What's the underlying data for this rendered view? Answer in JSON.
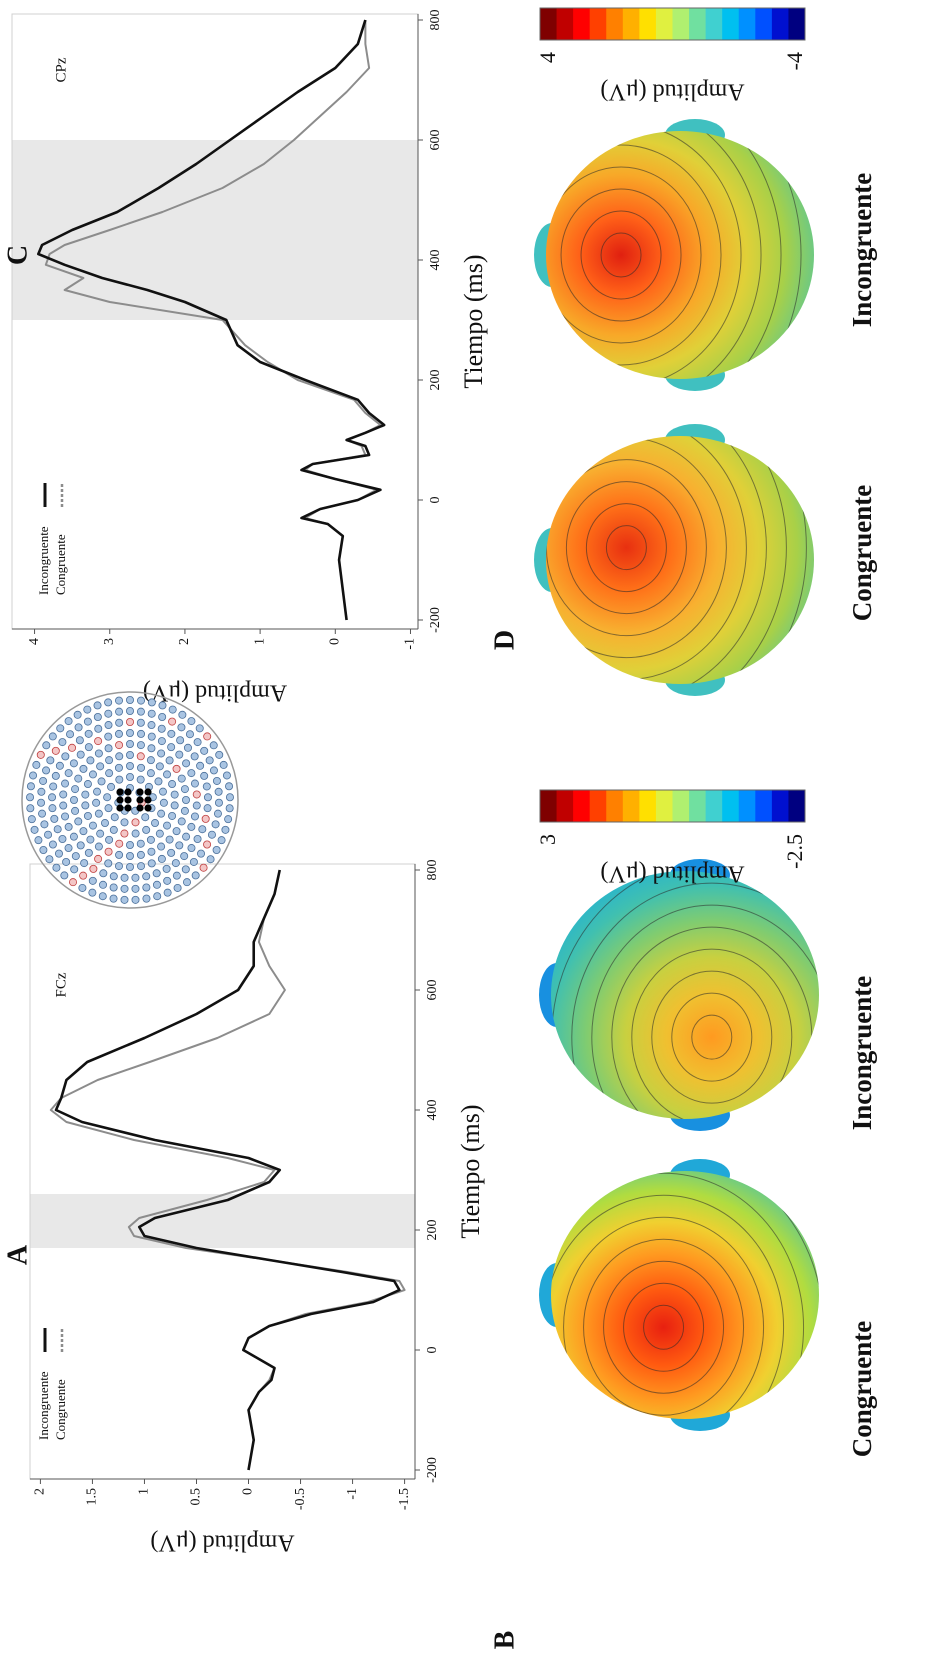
{
  "chart_data": [
    {
      "type": "line",
      "panel": "A",
      "annotation": "FCz",
      "xlabel": "Tiempo (ms)",
      "ylabel": "Amplitud (μV)",
      "x": [
        -200,
        -150,
        -100,
        -70,
        -50,
        -30,
        -10,
        0,
        20,
        40,
        60,
        80,
        100,
        115,
        130,
        150,
        170,
        190,
        205,
        220,
        250,
        280,
        300,
        320,
        350,
        380,
        400,
        420,
        450,
        480,
        520,
        560,
        600,
        640,
        680,
        720,
        760,
        800
      ],
      "series": [
        {
          "name": "Incongruente",
          "color": "#111111",
          "values": [
            0.0,
            -0.05,
            0.0,
            -0.1,
            -0.22,
            -0.25,
            -0.05,
            0.05,
            0.0,
            -0.2,
            -0.6,
            -1.2,
            -1.45,
            -1.4,
            -0.9,
            -0.2,
            0.5,
            1.0,
            1.05,
            0.9,
            0.2,
            -0.2,
            -0.3,
            0.0,
            0.9,
            1.6,
            1.85,
            1.8,
            1.75,
            1.55,
            1.0,
            0.5,
            0.1,
            -0.05,
            -0.05,
            -0.15,
            -0.25,
            -0.3
          ]
        },
        {
          "name": "Congruente",
          "color": "#8c8c8c",
          "values": [
            0.0,
            -0.05,
            0.0,
            -0.1,
            -0.2,
            -0.25,
            -0.05,
            0.05,
            0.0,
            -0.2,
            -0.55,
            -1.15,
            -1.5,
            -1.45,
            -0.95,
            -0.2,
            0.6,
            1.1,
            1.15,
            1.05,
            0.4,
            -0.15,
            -0.25,
            0.2,
            1.1,
            1.75,
            1.9,
            1.8,
            1.45,
            0.95,
            0.3,
            -0.2,
            -0.35,
            -0.2,
            -0.1,
            -0.15,
            -0.25,
            -0.3
          ]
        }
      ],
      "xlim": [
        -215,
        810
      ],
      "ylim": [
        -1.6,
        2.1
      ],
      "xticks": [
        -200,
        0,
        200,
        400,
        600,
        800
      ],
      "yticks": [
        -1.5,
        -1,
        -0.5,
        0,
        0.5,
        1,
        1.5,
        2
      ],
      "shaded": [
        170,
        260
      ]
    },
    {
      "type": "topomap",
      "panel": "B",
      "maps": [
        {
          "label": "Congruente"
        },
        {
          "label": "Incongruente"
        }
      ],
      "colorbar": {
        "label": "Amplitud (μV)",
        "max": 3,
        "min": -2.5,
        "colors": [
          "#7f0000",
          "#c00000",
          "#ff0000",
          "#ff4000",
          "#ff8000",
          "#ffb000",
          "#ffe000",
          "#e0f040",
          "#b0f070",
          "#70e0a0",
          "#40d0d0",
          "#00c0f0",
          "#0090ff",
          "#0050ff",
          "#0010d0",
          "#000080"
        ]
      }
    },
    {
      "type": "line",
      "panel": "C",
      "annotation": "CPz",
      "xlabel": "Tiempo (ms)",
      "ylabel": "Amplitud (μV)",
      "x": [
        -200,
        -150,
        -100,
        -60,
        -40,
        -30,
        -15,
        0,
        17,
        35,
        50,
        60,
        75,
        90,
        100,
        112,
        125,
        145,
        167,
        200,
        230,
        258,
        300,
        330,
        350,
        370,
        392,
        410,
        425,
        450,
        480,
        520,
        560,
        600,
        640,
        680,
        720,
        760,
        800
      ],
      "series": [
        {
          "name": "Incongruente",
          "color": "#111111",
          "values": [
            -0.15,
            -0.1,
            -0.05,
            -0.1,
            0.1,
            0.45,
            0.2,
            -0.3,
            -0.6,
            0.0,
            0.45,
            0.3,
            -0.45,
            -0.4,
            -0.15,
            -0.4,
            -0.65,
            -0.45,
            -0.3,
            0.4,
            1.0,
            1.3,
            1.45,
            2.0,
            2.5,
            3.1,
            3.6,
            3.95,
            3.9,
            3.5,
            2.9,
            2.35,
            1.85,
            1.4,
            0.95,
            0.5,
            0.0,
            -0.3,
            -0.4
          ]
        },
        {
          "name": "Congruente",
          "color": "#8c8c8c",
          "values": [
            -0.15,
            -0.1,
            -0.05,
            -0.1,
            0.1,
            0.4,
            0.2,
            -0.3,
            -0.55,
            0.0,
            0.4,
            0.3,
            -0.4,
            -0.35,
            -0.15,
            -0.4,
            -0.6,
            -0.4,
            -0.25,
            0.5,
            0.9,
            1.2,
            1.5,
            3.0,
            3.6,
            3.35,
            3.85,
            3.8,
            3.6,
            3.0,
            2.3,
            1.5,
            0.95,
            0.55,
            0.2,
            -0.15,
            -0.45,
            -0.4,
            -0.4
          ]
        }
      ],
      "xlim": [
        -215,
        810
      ],
      "ylim": [
        -1.1,
        4.3
      ],
      "xticks": [
        -200,
        0,
        200,
        400,
        600,
        800
      ],
      "yticks": [
        -1,
        0,
        1,
        2,
        3,
        4
      ],
      "shaded": [
        300,
        600
      ]
    },
    {
      "type": "topomap",
      "panel": "D",
      "maps": [
        {
          "label": "Congruente"
        },
        {
          "label": "Incongruente"
        }
      ],
      "colorbar": {
        "label": "Amplitud (μV)",
        "max": 4,
        "min": -4,
        "colors": [
          "#7f0000",
          "#c00000",
          "#ff0000",
          "#ff4000",
          "#ff8000",
          "#ffb000",
          "#ffe000",
          "#e0f040",
          "#b0f070",
          "#70e0a0",
          "#40d0d0",
          "#00c0f0",
          "#0090ff",
          "#0050ff",
          "#0010d0",
          "#000080"
        ]
      }
    }
  ]
}
